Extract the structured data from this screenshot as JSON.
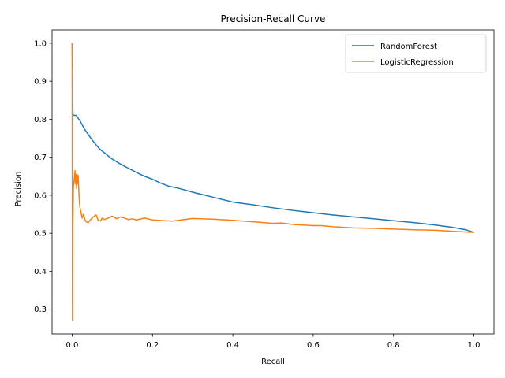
{
  "chart_data": {
    "type": "line",
    "title": "Precision-Recall Curve",
    "xlabel": "Recall",
    "ylabel": "Precision",
    "xlim": [
      -0.05,
      1.05
    ],
    "ylim": [
      0.235,
      1.035
    ],
    "xticks": [
      0.0,
      0.2,
      0.4,
      0.6,
      0.8,
      1.0
    ],
    "xtick_labels": [
      "0.0",
      "0.2",
      "0.4",
      "0.6",
      "0.8",
      "1.0"
    ],
    "yticks": [
      0.3,
      0.4,
      0.5,
      0.6,
      0.7,
      0.8,
      0.9,
      1.0
    ],
    "ytick_labels": [
      "0.3",
      "0.4",
      "0.5",
      "0.6",
      "0.7",
      "0.8",
      "0.9",
      "1.0"
    ],
    "grid": false,
    "legend_position": "top-right",
    "series": [
      {
        "name": "RandomForest",
        "color": "#1f77b4",
        "points": [
          [
            0.0,
            1.0
          ],
          [
            0.0005,
            0.95
          ],
          [
            0.001,
            0.85
          ],
          [
            0.002,
            0.812
          ],
          [
            0.005,
            0.81
          ],
          [
            0.01,
            0.81
          ],
          [
            0.02,
            0.795
          ],
          [
            0.03,
            0.775
          ],
          [
            0.04,
            0.76
          ],
          [
            0.05,
            0.745
          ],
          [
            0.06,
            0.732
          ],
          [
            0.07,
            0.72
          ],
          [
            0.08,
            0.712
          ],
          [
            0.09,
            0.703
          ],
          [
            0.1,
            0.695
          ],
          [
            0.12,
            0.682
          ],
          [
            0.14,
            0.671
          ],
          [
            0.16,
            0.66
          ],
          [
            0.18,
            0.65
          ],
          [
            0.2,
            0.642
          ],
          [
            0.22,
            0.632
          ],
          [
            0.24,
            0.624
          ],
          [
            0.27,
            0.617
          ],
          [
            0.3,
            0.608
          ],
          [
            0.35,
            0.595
          ],
          [
            0.4,
            0.582
          ],
          [
            0.45,
            0.575
          ],
          [
            0.5,
            0.567
          ],
          [
            0.55,
            0.56
          ],
          [
            0.6,
            0.554
          ],
          [
            0.65,
            0.548
          ],
          [
            0.7,
            0.543
          ],
          [
            0.75,
            0.538
          ],
          [
            0.8,
            0.533
          ],
          [
            0.85,
            0.528
          ],
          [
            0.9,
            0.522
          ],
          [
            0.95,
            0.515
          ],
          [
            0.98,
            0.509
          ],
          [
            0.995,
            0.504
          ],
          [
            1.0,
            0.501
          ]
        ]
      },
      {
        "name": "LogisticRegression",
        "color": "#ff7f0e",
        "points": [
          [
            0.0,
            1.0
          ],
          [
            0.0005,
            0.5
          ],
          [
            0.0008,
            0.27
          ],
          [
            0.001,
            0.27
          ],
          [
            0.0015,
            0.52
          ],
          [
            0.003,
            0.62
          ],
          [
            0.005,
            0.64
          ],
          [
            0.007,
            0.665
          ],
          [
            0.008,
            0.63
          ],
          [
            0.009,
            0.655
          ],
          [
            0.011,
            0.618
          ],
          [
            0.012,
            0.655
          ],
          [
            0.013,
            0.63
          ],
          [
            0.015,
            0.652
          ],
          [
            0.017,
            0.6
          ],
          [
            0.019,
            0.57
          ],
          [
            0.022,
            0.555
          ],
          [
            0.025,
            0.54
          ],
          [
            0.028,
            0.55
          ],
          [
            0.032,
            0.535
          ],
          [
            0.035,
            0.53
          ],
          [
            0.04,
            0.528
          ],
          [
            0.045,
            0.535
          ],
          [
            0.05,
            0.54
          ],
          [
            0.055,
            0.545
          ],
          [
            0.06,
            0.548
          ],
          [
            0.065,
            0.533
          ],
          [
            0.07,
            0.532
          ],
          [
            0.075,
            0.54
          ],
          [
            0.08,
            0.536
          ],
          [
            0.09,
            0.54
          ],
          [
            0.1,
            0.545
          ],
          [
            0.11,
            0.538
          ],
          [
            0.12,
            0.543
          ],
          [
            0.13,
            0.54
          ],
          [
            0.14,
            0.536
          ],
          [
            0.15,
            0.538
          ],
          [
            0.16,
            0.535
          ],
          [
            0.18,
            0.54
          ],
          [
            0.2,
            0.535
          ],
          [
            0.23,
            0.533
          ],
          [
            0.25,
            0.532
          ],
          [
            0.3,
            0.539
          ],
          [
            0.35,
            0.537
          ],
          [
            0.4,
            0.534
          ],
          [
            0.45,
            0.53
          ],
          [
            0.5,
            0.526
          ],
          [
            0.52,
            0.527
          ],
          [
            0.55,
            0.523
          ],
          [
            0.6,
            0.52
          ],
          [
            0.62,
            0.52
          ],
          [
            0.65,
            0.517
          ],
          [
            0.7,
            0.514
          ],
          [
            0.75,
            0.513
          ],
          [
            0.8,
            0.511
          ],
          [
            0.85,
            0.509
          ],
          [
            0.9,
            0.508
          ],
          [
            0.95,
            0.505
          ],
          [
            1.0,
            0.502
          ]
        ]
      }
    ]
  }
}
